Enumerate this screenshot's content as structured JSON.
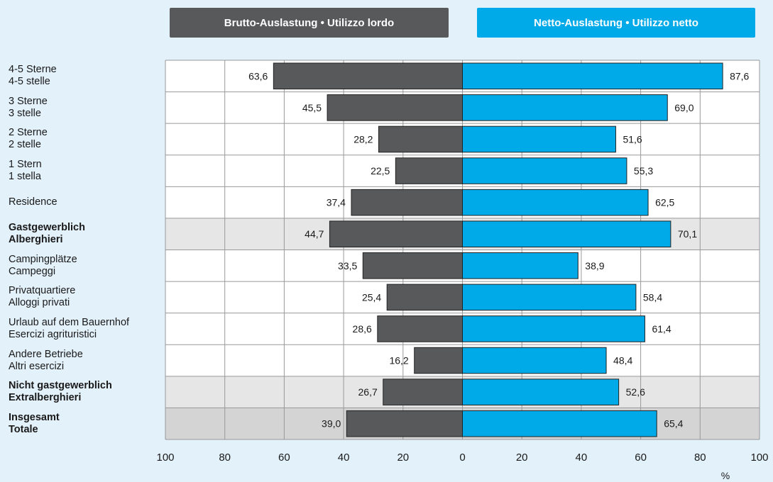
{
  "colors": {
    "brutto": "#58595b",
    "netto": "#00a9e8",
    "background": "#e3f1fb",
    "plot_bg": "#ffffff",
    "highlight_row": "#e6e6e6",
    "total_row": "#d4d4d4",
    "grid": "#999999"
  },
  "legend": {
    "brutto": "Brutto-Auslastung • Utilizzo lordo",
    "netto": "Netto-Auslastung • Utilizzo netto"
  },
  "chart_data": {
    "type": "bar",
    "orientation": "horizontal-butterfly",
    "categories": [
      [
        "4-5 Sterne",
        "4-5 stelle"
      ],
      [
        "3 Sterne",
        "3 stelle"
      ],
      [
        "2 Sterne",
        "2 stelle"
      ],
      [
        "1 Stern",
        "1 stella"
      ],
      [
        "Residence"
      ],
      [
        "Gastgewerblich",
        "Alberghieri"
      ],
      [
        "Campingplätze",
        "Campeggi"
      ],
      [
        "Privatquartiere",
        "Alloggi privati"
      ],
      [
        "Urlaub auf dem Bauernhof",
        "Esercizi agrituristici"
      ],
      [
        "Andere Betriebe",
        "Altri esercizi"
      ],
      [
        "Nicht gastgewerblich",
        "Extralberghieri"
      ],
      [
        "Insgesamt",
        "Totale"
      ]
    ],
    "bold_rows": [
      5,
      10,
      11
    ],
    "shaded_rows": [
      5,
      10,
      11
    ],
    "series": [
      {
        "name": "Brutto-Auslastung • Utilizzo lordo",
        "values": [
          63.6,
          45.5,
          28.2,
          22.5,
          37.4,
          44.7,
          33.5,
          25.4,
          28.6,
          16.2,
          26.7,
          39.0
        ],
        "labels": [
          "63,6",
          "45,5",
          "28,2",
          "22,5",
          "37,4",
          "44,7",
          "33,5",
          "25,4",
          "28,6",
          "16,2",
          "26,7",
          "39,0"
        ]
      },
      {
        "name": "Netto-Auslastung • Utilizzo netto",
        "values": [
          87.6,
          69.0,
          51.6,
          55.3,
          62.5,
          70.1,
          38.9,
          58.4,
          61.4,
          48.4,
          52.6,
          65.4
        ],
        "labels": [
          "87,6",
          "69,0",
          "51,6",
          "55,3",
          "62,5",
          "70,1",
          "38,9",
          "58,4",
          "61,4",
          "48,4",
          "52,6",
          "65,4"
        ]
      }
    ],
    "xticks": [
      "100",
      "80",
      "60",
      "40",
      "20",
      "0",
      "20",
      "40",
      "60",
      "80",
      "100"
    ],
    "xlim": [
      -100,
      100
    ],
    "xunit": "%",
    "grid": true
  }
}
